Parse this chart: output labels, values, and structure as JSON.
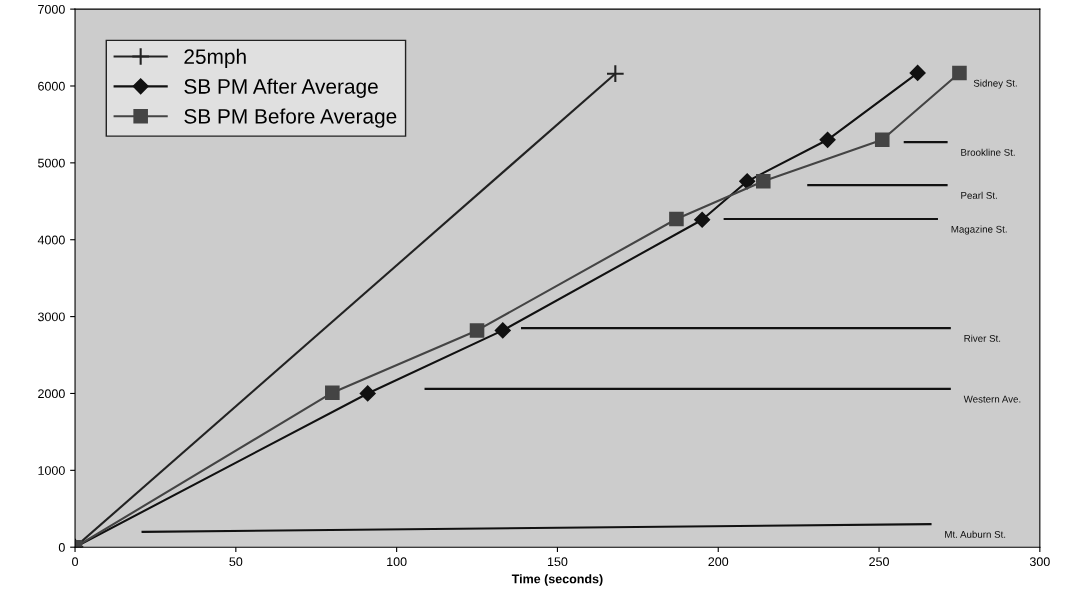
{
  "chart_data": {
    "type": "line",
    "xlabel": "Time (seconds)",
    "xlim": [
      0,
      300
    ],
    "xticks": [
      0,
      50,
      100,
      150,
      200,
      250,
      300
    ],
    "ylim": [
      0,
      7000
    ],
    "yticks": [
      0,
      1000,
      2000,
      3000,
      4000,
      5000,
      6000,
      7000
    ],
    "grid": false,
    "legend": "top left",
    "series": [
      {
        "name": "25mph",
        "color": "#222222",
        "marker": "cross",
        "x": [
          0,
          168
        ],
        "values": [
          0,
          6160
        ]
      },
      {
        "name": "SB PM After Average",
        "color": "#111111",
        "marker": "diamond",
        "x": [
          0,
          91,
          133,
          195,
          209,
          234,
          262
        ],
        "values": [
          0,
          2000,
          2820,
          4260,
          4760,
          5300,
          6170
        ]
      },
      {
        "name": "SB PM Before Average",
        "color": "#444444",
        "marker": "square",
        "x": [
          0,
          80,
          125,
          187,
          214,
          251,
          275
        ],
        "values": [
          0,
          2010,
          2820,
          4270,
          4760,
          5300,
          6170
        ]
      },
      {
        "color": "#111111",
        "marker": "none",
        "x": [
          21,
          266
        ],
        "values": [
          200,
          300
        ]
      },
      {
        "color": "#111111",
        "marker": "none",
        "x": [
          109,
          272
        ],
        "values": [
          2060,
          2060
        ]
      },
      {
        "color": "#111111",
        "marker": "none",
        "x": [
          139,
          272
        ],
        "values": [
          2850,
          2850
        ]
      },
      {
        "color": "#111111",
        "marker": "none",
        "x": [
          202,
          268
        ],
        "values": [
          4270,
          4270
        ]
      },
      {
        "color": "#111111",
        "marker": "none",
        "x": [
          228,
          271
        ],
        "values": [
          4710,
          4710
        ]
      },
      {
        "color": "#111111",
        "marker": "none",
        "x": [
          258,
          271
        ],
        "values": [
          5270,
          5270
        ]
      }
    ],
    "annotations": [
      {
        "text": "Sidney St.",
        "x": 275,
        "y": 6170
      },
      {
        "text": "Brookline St.",
        "x": 271,
        "y": 5270
      },
      {
        "text": "Pearl St.",
        "x": 271,
        "y": 4710
      },
      {
        "text": "Magazine St.",
        "x": 268,
        "y": 4270
      },
      {
        "text": "River St.",
        "x": 272,
        "y": 2850
      },
      {
        "text": "Western Ave.",
        "x": 272,
        "y": 2060
      },
      {
        "text": "Mt. Auburn St.",
        "x": 266,
        "y": 300
      }
    ]
  }
}
